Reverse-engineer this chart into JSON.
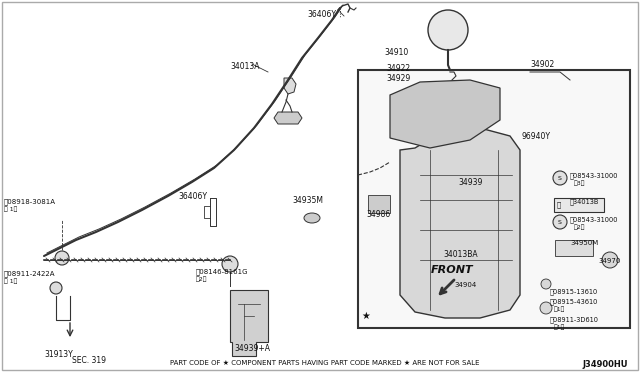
{
  "bg_color": "#ffffff",
  "fig_width": 6.4,
  "fig_height": 3.72,
  "dpi": 100,
  "footer_text": "PART CODE OF ★ COMPONENT PARTS HAVING PART CODE MARKED ★ ARE NOT FOR SALE",
  "diagram_id": "J34900HU",
  "sec_label": "SEC. 319",
  "front_label": "FRONT",
  "line_color": "#333333",
  "text_color": "#111111"
}
